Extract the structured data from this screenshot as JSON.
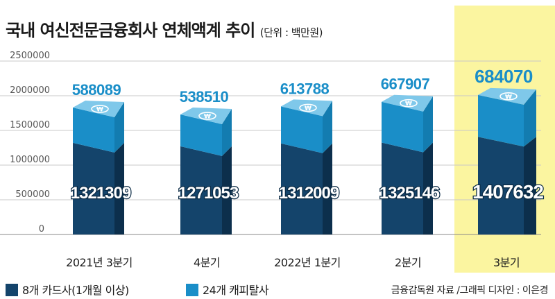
{
  "title": "국내 여신전문금융회사 연체액계 추이",
  "unit": "(단위 : 백만원)",
  "colors": {
    "company8": "#14446b",
    "company8_side": "#0c2f4c",
    "company8_top": "#1d5a88",
    "capital24": "#1a8ec8",
    "capital24_top": "#7fc8ea",
    "highlight": "#fbf5a0",
    "label24": "#1a8ec8"
  },
  "chart_data": {
    "type": "bar",
    "stacked": true,
    "categories": [
      "2021년 3분기",
      "4분기",
      "2022년 1분기",
      "2분기",
      "3분기"
    ],
    "series": [
      {
        "name": "8개 카드사(1개월 이상)",
        "values": [
          1321309,
          1271053,
          1312009,
          1325146,
          1407632
        ]
      },
      {
        "name": "24개 캐피탈사",
        "values": [
          588089,
          538510,
          613788,
          667907,
          684070
        ]
      }
    ],
    "yticks": [
      "0",
      "500000",
      "1000000",
      "1500000",
      "2000000",
      "2500000"
    ],
    "ylim": [
      0,
      2500000
    ],
    "highlight_category": "3분기"
  },
  "legend": [
    {
      "label": "8개 카드사(1개월 이상)",
      "color": "#14446b"
    },
    {
      "label": "24개 캐피탈사",
      "color": "#1a8ec8"
    }
  ],
  "source": "금융감독원 자료 /그래픽 디자인 : 이은경"
}
